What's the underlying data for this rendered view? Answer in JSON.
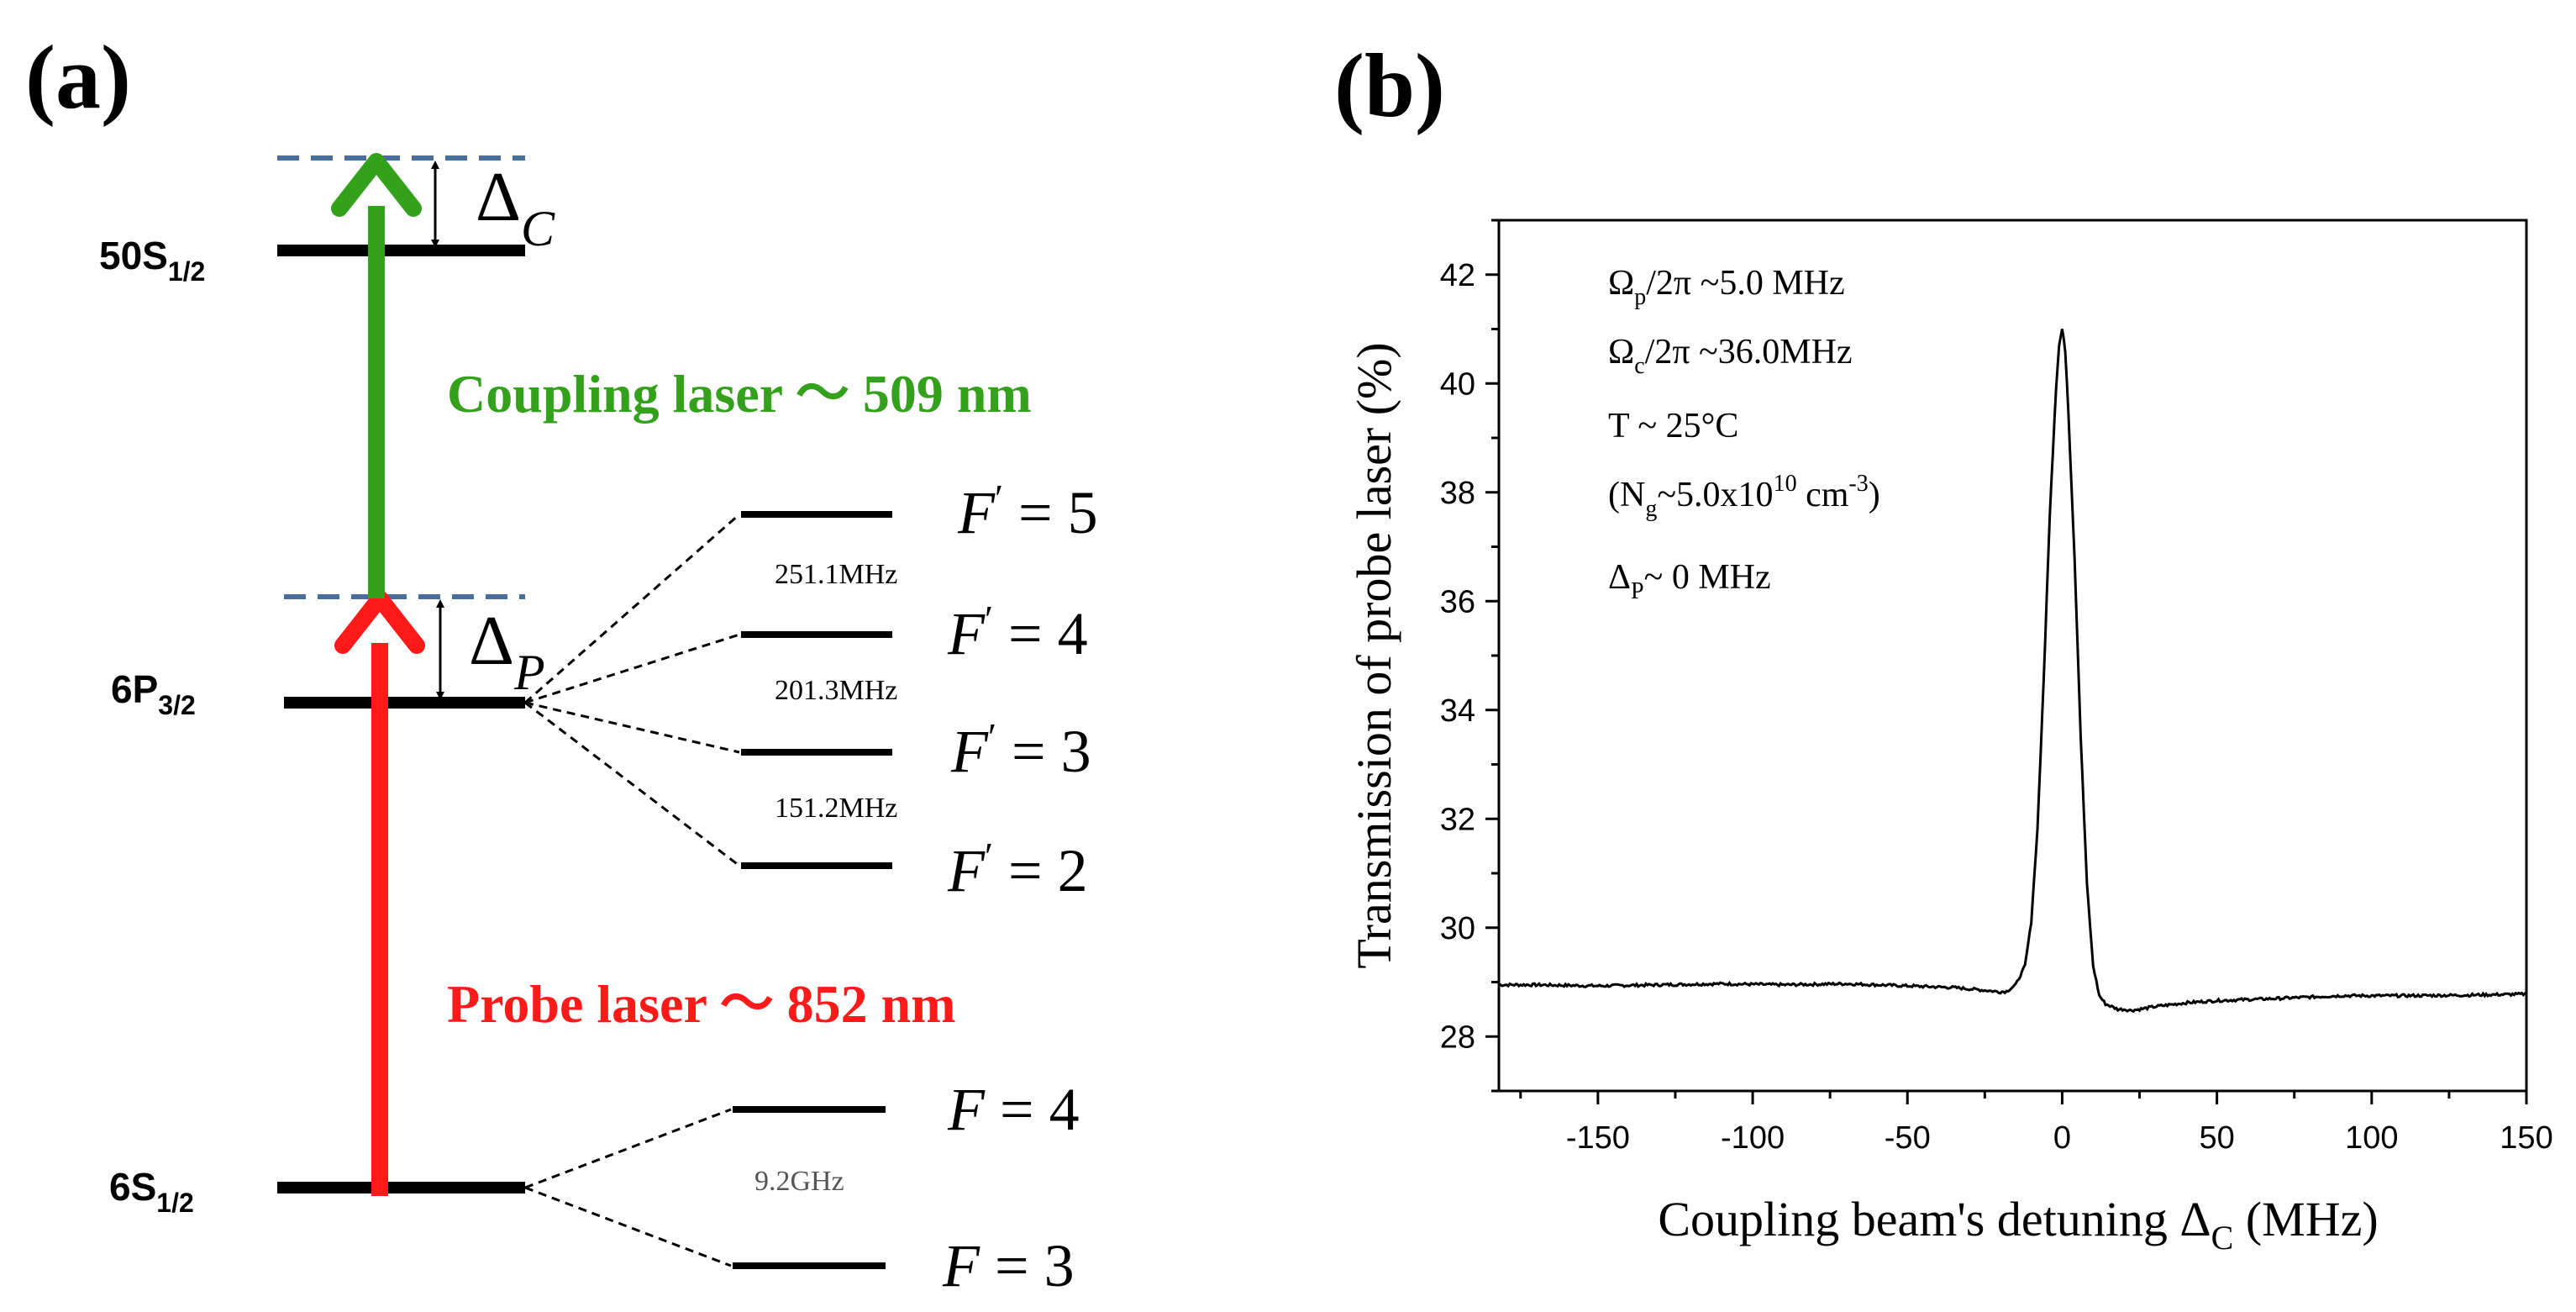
{
  "panel_a": {
    "label": "(a)",
    "levels": {
      "s50": {
        "main": "50S",
        "sub": "1/2"
      },
      "p6": {
        "main": "6P",
        "sub": "3/2"
      },
      "s6": {
        "main": "6S",
        "sub": "1/2"
      }
    },
    "hyperfine_excited": [
      {
        "name": "F",
        "prime": "′",
        "value": "5"
      },
      {
        "name": "F",
        "prime": "′",
        "value": "4"
      },
      {
        "name": "F",
        "prime": "′",
        "value": "3"
      },
      {
        "name": "F",
        "prime": "′",
        "value": "2"
      }
    ],
    "hyperfine_ground": [
      {
        "name": "F",
        "value": "4"
      },
      {
        "name": "F",
        "value": "3"
      }
    ],
    "splittings": {
      "f5_f4": "251.1MHz",
      "f4_f3": "201.3MHz",
      "f3_f2": "151.2MHz",
      "ground": "9.2GHz"
    },
    "coupling_laser": "Coupling laser ～ 509 nm",
    "probe_laser": "Probe laser ～ 852 nm",
    "delta_c": {
      "symbol": "Δ",
      "sub": "C"
    },
    "delta_p": {
      "symbol": "Δ",
      "sub": "P"
    },
    "colors": {
      "coupling": "#33a11b",
      "probe": "#ff1a1a",
      "virtual": "#4a6e9c",
      "level": "#000000",
      "gap_text": "#555555"
    }
  },
  "panel_b": {
    "label": "(b)",
    "annotations": [
      {
        "parts": [
          [
            "Ω",
            ""
          ],
          [
            "p",
            "sub"
          ],
          [
            "/2π ~5.0 MHz",
            ""
          ]
        ]
      },
      {
        "parts": [
          [
            "Ω",
            ""
          ],
          [
            "c",
            "sub"
          ],
          [
            "/2π ~36.0MHz",
            ""
          ]
        ]
      },
      {
        "parts": [
          [
            "T ~ 25°C",
            ""
          ]
        ]
      },
      {
        "parts": [
          [
            "(N",
            ""
          ],
          [
            "g",
            "sub"
          ],
          [
            "~5.0x10",
            ""
          ],
          [
            "10",
            "sup"
          ],
          [
            " cm",
            ""
          ],
          [
            "-3",
            "sup"
          ],
          [
            ")",
            ""
          ]
        ]
      },
      {
        "parts": [
          [
            "Δ",
            ""
          ],
          [
            "P",
            "sub"
          ],
          [
            "~ 0 MHz",
            ""
          ]
        ]
      }
    ]
  },
  "chart_data": {
    "type": "line",
    "title": "",
    "xlabel": "Coupling beam's detuning Δ_C (MHz)",
    "xlabel_parts": {
      "pre": "Coupling beam's detuning Δ",
      "sub": "C",
      "post": " (MHz)"
    },
    "ylabel": "Transmission of probe laser (%)",
    "xlim": [
      -182,
      150
    ],
    "ylim": [
      27,
      43
    ],
    "xticks": [
      -150,
      -100,
      -50,
      0,
      50,
      100,
      150
    ],
    "yticks": [
      28,
      30,
      32,
      34,
      36,
      38,
      40,
      42
    ],
    "series": [
      {
        "name": "Transmission",
        "x": [
          -182,
          -170,
          -150,
          -130,
          -110,
          -90,
          -70,
          -50,
          -35,
          -25,
          -20,
          -18,
          -15,
          -12,
          -10,
          -8,
          -6,
          -4,
          -2,
          -1,
          0,
          1,
          2,
          4,
          6,
          8,
          10,
          12,
          14,
          16,
          18,
          20,
          22,
          25,
          30,
          40,
          50,
          70,
          90,
          110,
          130,
          150
        ],
        "y": [
          28.95,
          28.95,
          28.93,
          28.95,
          28.97,
          28.95,
          28.97,
          28.93,
          28.9,
          28.85,
          28.82,
          28.83,
          28.95,
          29.3,
          30.1,
          31.8,
          34.5,
          37.6,
          39.9,
          40.7,
          41.0,
          40.6,
          39.5,
          36.8,
          33.5,
          30.8,
          29.3,
          28.75,
          28.6,
          28.55,
          28.5,
          28.5,
          28.48,
          28.5,
          28.55,
          28.62,
          28.66,
          28.7,
          28.75,
          28.75,
          28.76,
          28.78
        ]
      }
    ]
  }
}
